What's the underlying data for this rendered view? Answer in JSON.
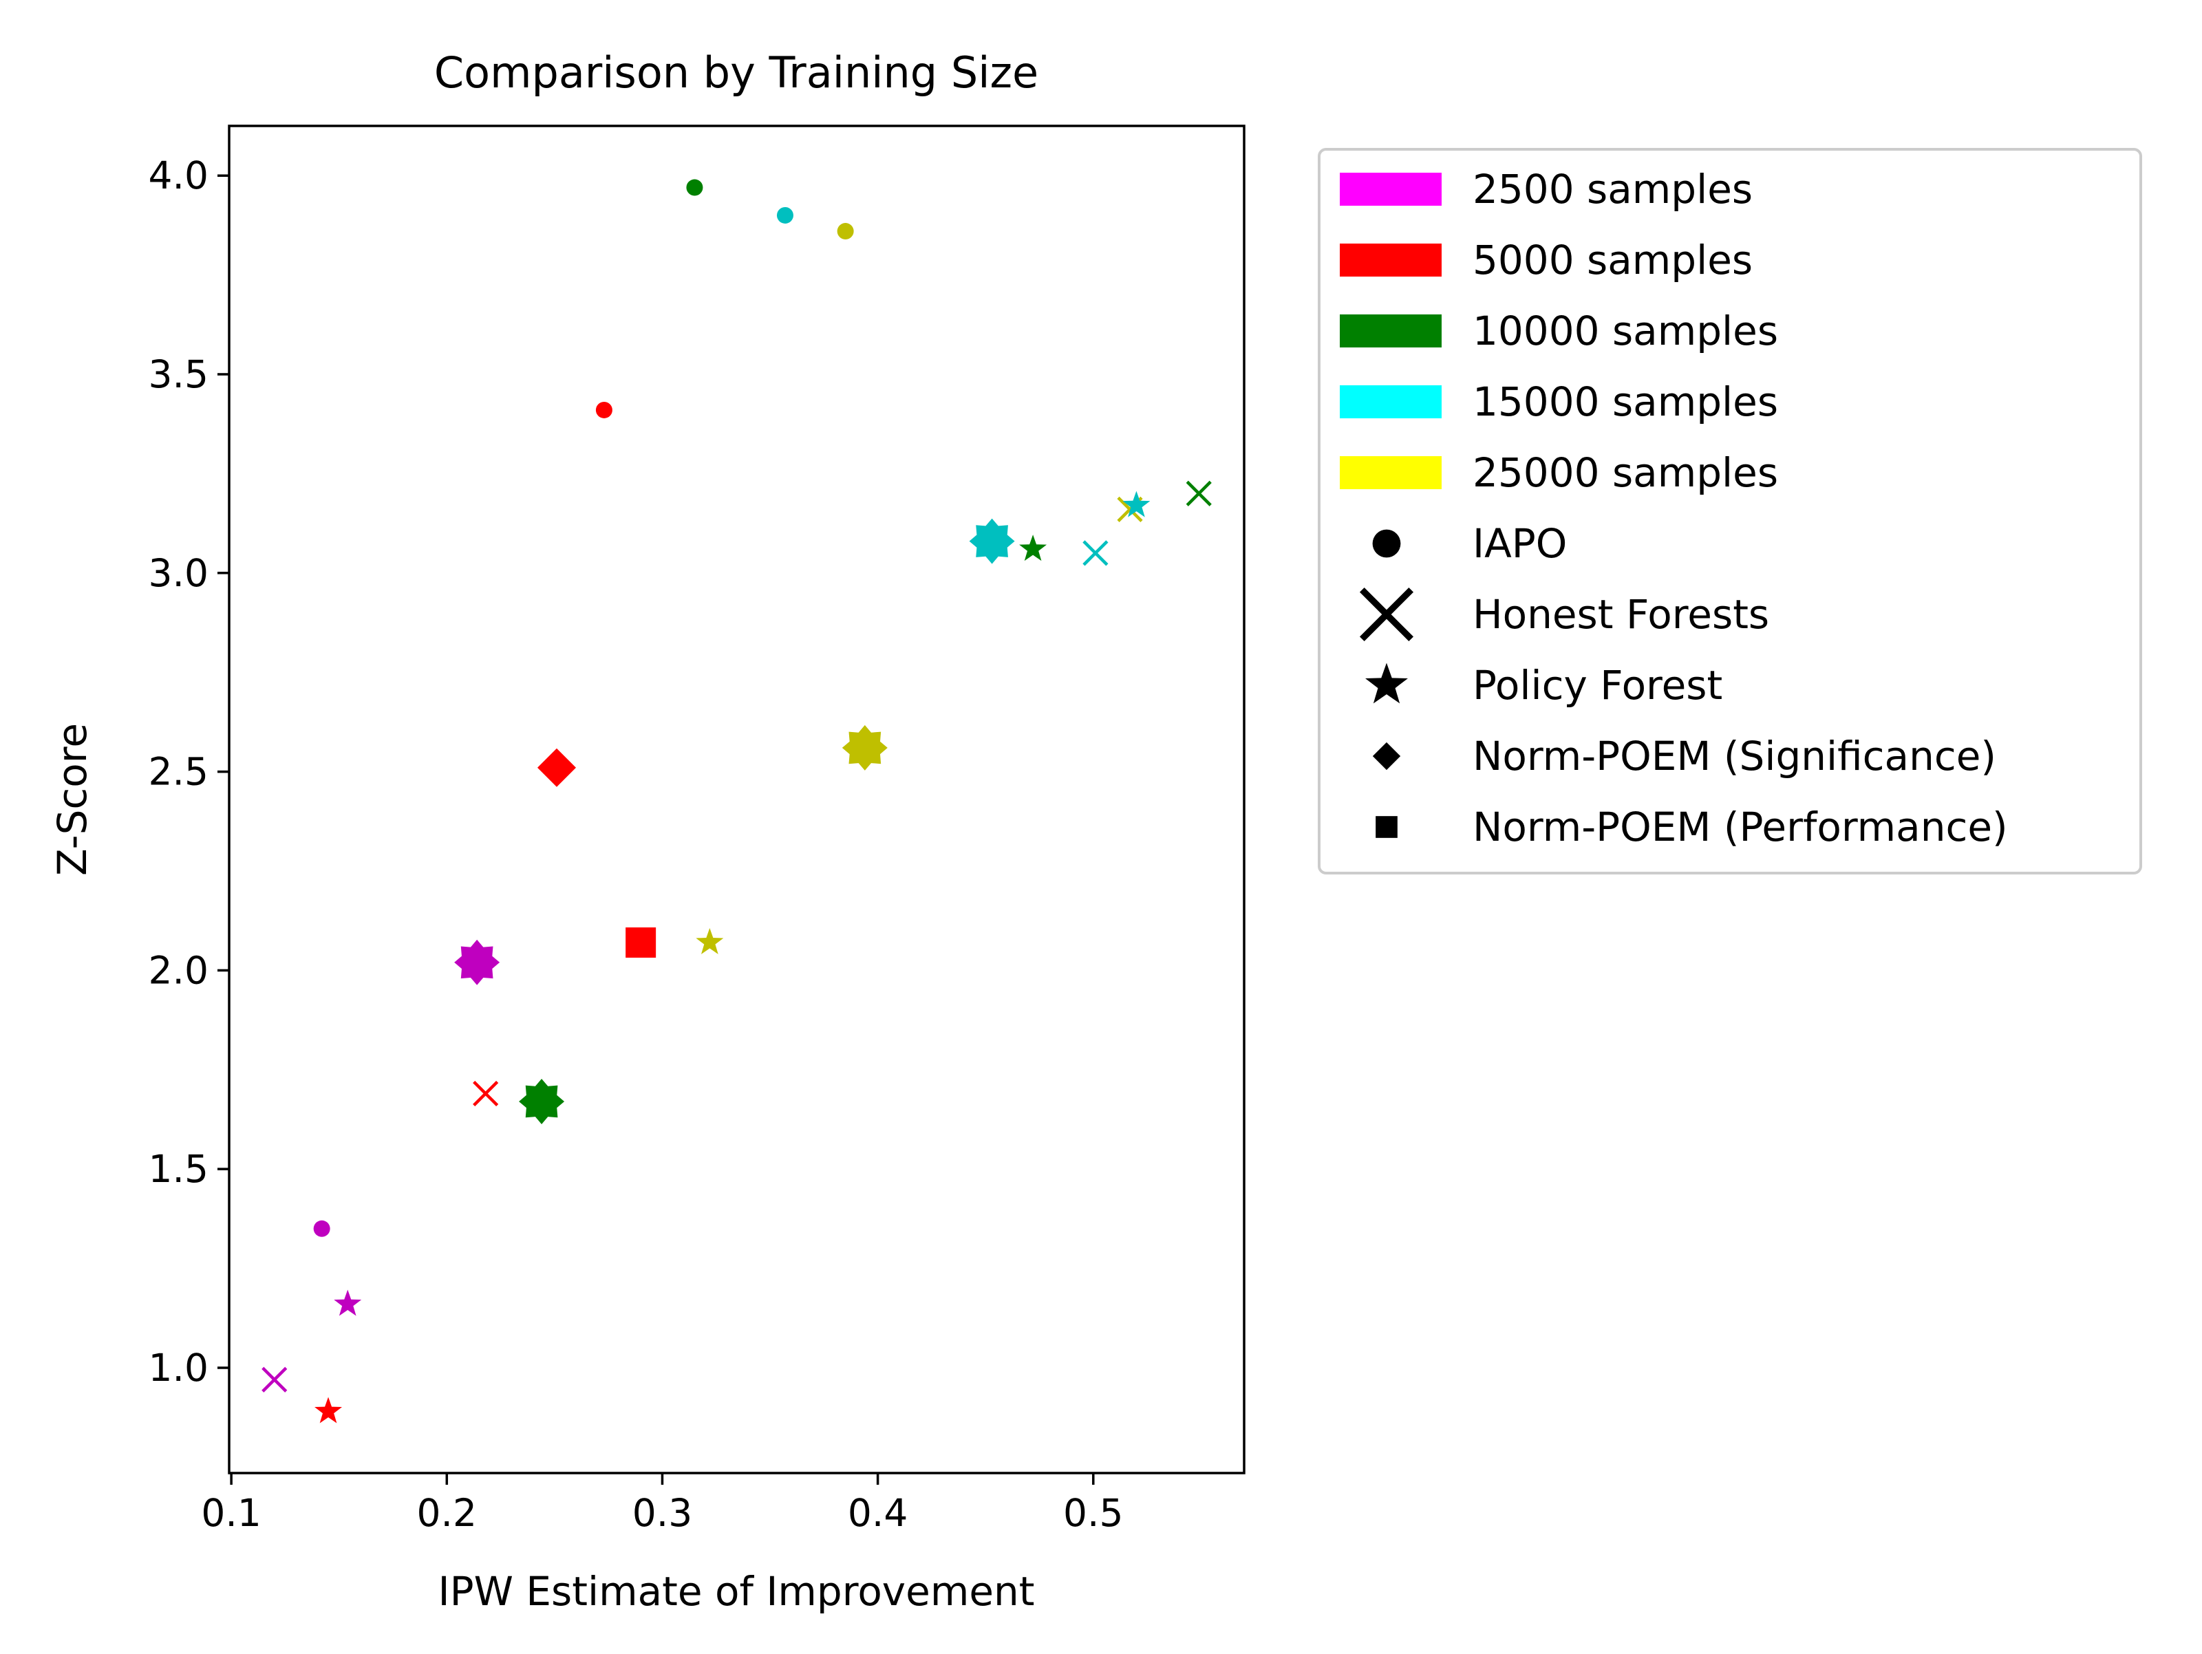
{
  "chart_data": {
    "type": "scatter",
    "title": "Comparison by Training Size",
    "xlabel": "IPW Estimate of Improvement",
    "ylabel": "Z-Score",
    "xlim": [
      0.099,
      0.57
    ],
    "ylim": [
      0.735,
      4.125
    ],
    "xticks": [
      0.1,
      0.2,
      0.3,
      0.4,
      0.5
    ],
    "xtick_labels": [
      "0.1",
      "0.2",
      "0.3",
      "0.4",
      "0.5"
    ],
    "yticks": [
      1.0,
      1.5,
      2.0,
      2.5,
      3.0,
      3.5,
      4.0
    ],
    "ytick_labels": [
      "1.0",
      "1.5",
      "2.0",
      "2.5",
      "3.0",
      "3.5",
      "4.0"
    ],
    "grid": false,
    "legend_position": "outside-right",
    "sample_sizes": [
      {
        "label": "2500 samples",
        "legend_color": "#ff00ff",
        "marker_color": "#bf00bf"
      },
      {
        "label": "5000 samples",
        "legend_color": "#ff0000",
        "marker_color": "#ff0000"
      },
      {
        "label": "10000 samples",
        "legend_color": "#008000",
        "marker_color": "#008000"
      },
      {
        "label": "15000 samples",
        "legend_color": "#00ffff",
        "marker_color": "#00bfbf"
      },
      {
        "label": "25000 samples",
        "legend_color": "#ffff00",
        "marker_color": "#bfbf00"
      }
    ],
    "methods": [
      {
        "label": "IAPO",
        "marker": "circle"
      },
      {
        "label": "Honest Forests",
        "marker": "x"
      },
      {
        "label": "Policy Forest",
        "marker": "star"
      },
      {
        "label": "Norm-POEM (Significance)",
        "marker": "diamond"
      },
      {
        "label": "Norm-POEM (Performance)",
        "marker": "square"
      }
    ],
    "points": [
      {
        "size": "2500 samples",
        "marker": "circle",
        "x": 0.142,
        "y": 1.35
      },
      {
        "size": "5000 samples",
        "marker": "circle",
        "x": 0.273,
        "y": 3.41
      },
      {
        "size": "10000 samples",
        "marker": "circle",
        "x": 0.315,
        "y": 3.97
      },
      {
        "size": "15000 samples",
        "marker": "circle",
        "x": 0.357,
        "y": 3.9
      },
      {
        "size": "25000 samples",
        "marker": "circle",
        "x": 0.385,
        "y": 3.86
      },
      {
        "size": "2500 samples",
        "marker": "x",
        "x": 0.12,
        "y": 0.97
      },
      {
        "size": "5000 samples",
        "marker": "x",
        "x": 0.218,
        "y": 1.69
      },
      {
        "size": "10000 samples",
        "marker": "x",
        "x": 0.549,
        "y": 3.2
      },
      {
        "size": "15000 samples",
        "marker": "x",
        "x": 0.501,
        "y": 3.05
      },
      {
        "size": "25000 samples",
        "marker": "x",
        "x": 0.517,
        "y": 3.16
      },
      {
        "size": "2500 samples",
        "marker": "star",
        "x": 0.154,
        "y": 1.16
      },
      {
        "size": "5000 samples",
        "marker": "star",
        "x": 0.145,
        "y": 0.89
      },
      {
        "size": "10000 samples",
        "marker": "star",
        "x": 0.472,
        "y": 3.06
      },
      {
        "size": "15000 samples",
        "marker": "star",
        "x": 0.52,
        "y": 3.17
      },
      {
        "size": "25000 samples",
        "marker": "star",
        "x": 0.322,
        "y": 2.07
      },
      {
        "size": "5000 samples",
        "marker": "diamond",
        "x": 0.251,
        "y": 2.51
      },
      {
        "size": "5000 samples",
        "marker": "square",
        "x": 0.29,
        "y": 2.07
      },
      {
        "size": "2500 samples",
        "marker": "star8",
        "x": 0.214,
        "y": 2.02
      },
      {
        "size": "10000 samples",
        "marker": "star8",
        "x": 0.244,
        "y": 1.67
      },
      {
        "size": "15000 samples",
        "marker": "star8",
        "x": 0.453,
        "y": 3.08
      },
      {
        "size": "25000 samples",
        "marker": "star8",
        "x": 0.394,
        "y": 2.56
      }
    ]
  }
}
